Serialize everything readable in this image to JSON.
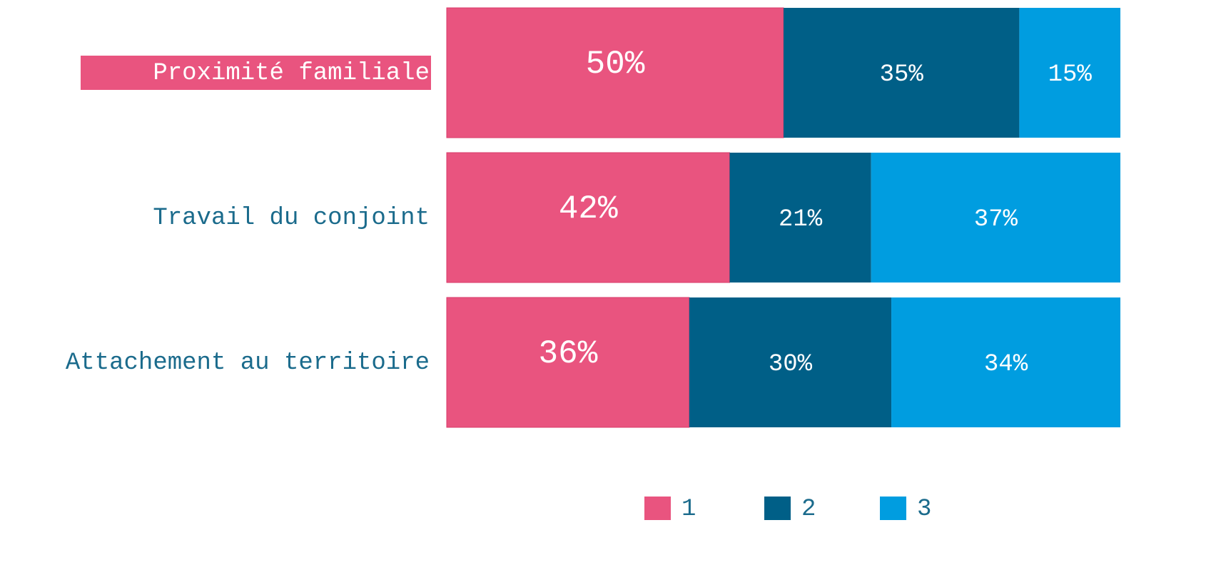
{
  "chart_data": {
    "type": "stacked-bar-horizontal",
    "categories": [
      "Proximité familiale",
      "Travail du conjoint",
      "Attachement au territoire"
    ],
    "series": [
      {
        "name": "1",
        "color": "#e9547f",
        "values": [
          50,
          42,
          36
        ],
        "value_labels": [
          "50%",
          "42%",
          "36%"
        ]
      },
      {
        "name": "2",
        "color": "#005f87",
        "values": [
          35,
          21,
          30
        ],
        "value_labels": [
          "35%",
          "21%",
          "30%"
        ]
      },
      {
        "name": "3",
        "color": "#009de0",
        "values": [
          15,
          37,
          34
        ],
        "value_labels": [
          "15%",
          "37%",
          "34%"
        ]
      }
    ]
  }
}
